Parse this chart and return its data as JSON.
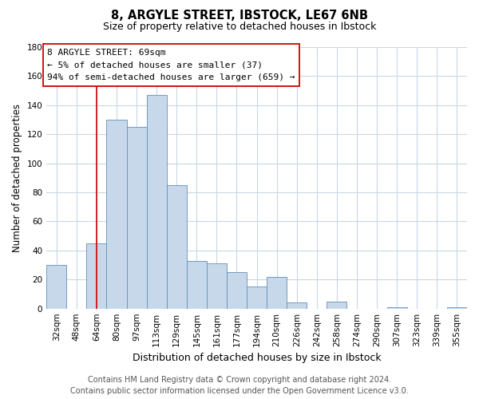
{
  "title": "8, ARGYLE STREET, IBSTOCK, LE67 6NB",
  "subtitle": "Size of property relative to detached houses in Ibstock",
  "xlabel": "Distribution of detached houses by size in Ibstock",
  "ylabel": "Number of detached properties",
  "bar_labels": [
    "32sqm",
    "48sqm",
    "64sqm",
    "80sqm",
    "97sqm",
    "113sqm",
    "129sqm",
    "145sqm",
    "161sqm",
    "177sqm",
    "194sqm",
    "210sqm",
    "226sqm",
    "242sqm",
    "258sqm",
    "274sqm",
    "290sqm",
    "307sqm",
    "323sqm",
    "339sqm",
    "355sqm"
  ],
  "bar_values": [
    30,
    0,
    45,
    130,
    125,
    147,
    85,
    33,
    31,
    25,
    15,
    22,
    4,
    0,
    5,
    0,
    0,
    1,
    0,
    0,
    1
  ],
  "bar_color": "#c8d8eb",
  "bar_edge_color": "#6090b8",
  "bar_edge_width": 0.6,
  "vline_x_index": 2,
  "vline_color": "#cc0000",
  "annotation_line1": "8 ARGYLE STREET: 69sqm",
  "annotation_line2": "← 5% of detached houses are smaller (37)",
  "annotation_line3": "94% of semi-detached houses are larger (659) →",
  "annotation_box_color": "#ffffff",
  "annotation_box_edge": "#cc0000",
  "ylim": [
    0,
    180
  ],
  "yticks": [
    0,
    20,
    40,
    60,
    80,
    100,
    120,
    140,
    160,
    180
  ],
  "footer_line1": "Contains HM Land Registry data © Crown copyright and database right 2024.",
  "footer_line2": "Contains public sector information licensed under the Open Government Licence v3.0.",
  "bg_color": "#ffffff",
  "grid_color": "#c8d8e8",
  "title_fontsize": 10.5,
  "subtitle_fontsize": 9,
  "xlabel_fontsize": 9,
  "ylabel_fontsize": 8.5,
  "tick_fontsize": 7.5,
  "annotation_fontsize": 8,
  "footer_fontsize": 7
}
